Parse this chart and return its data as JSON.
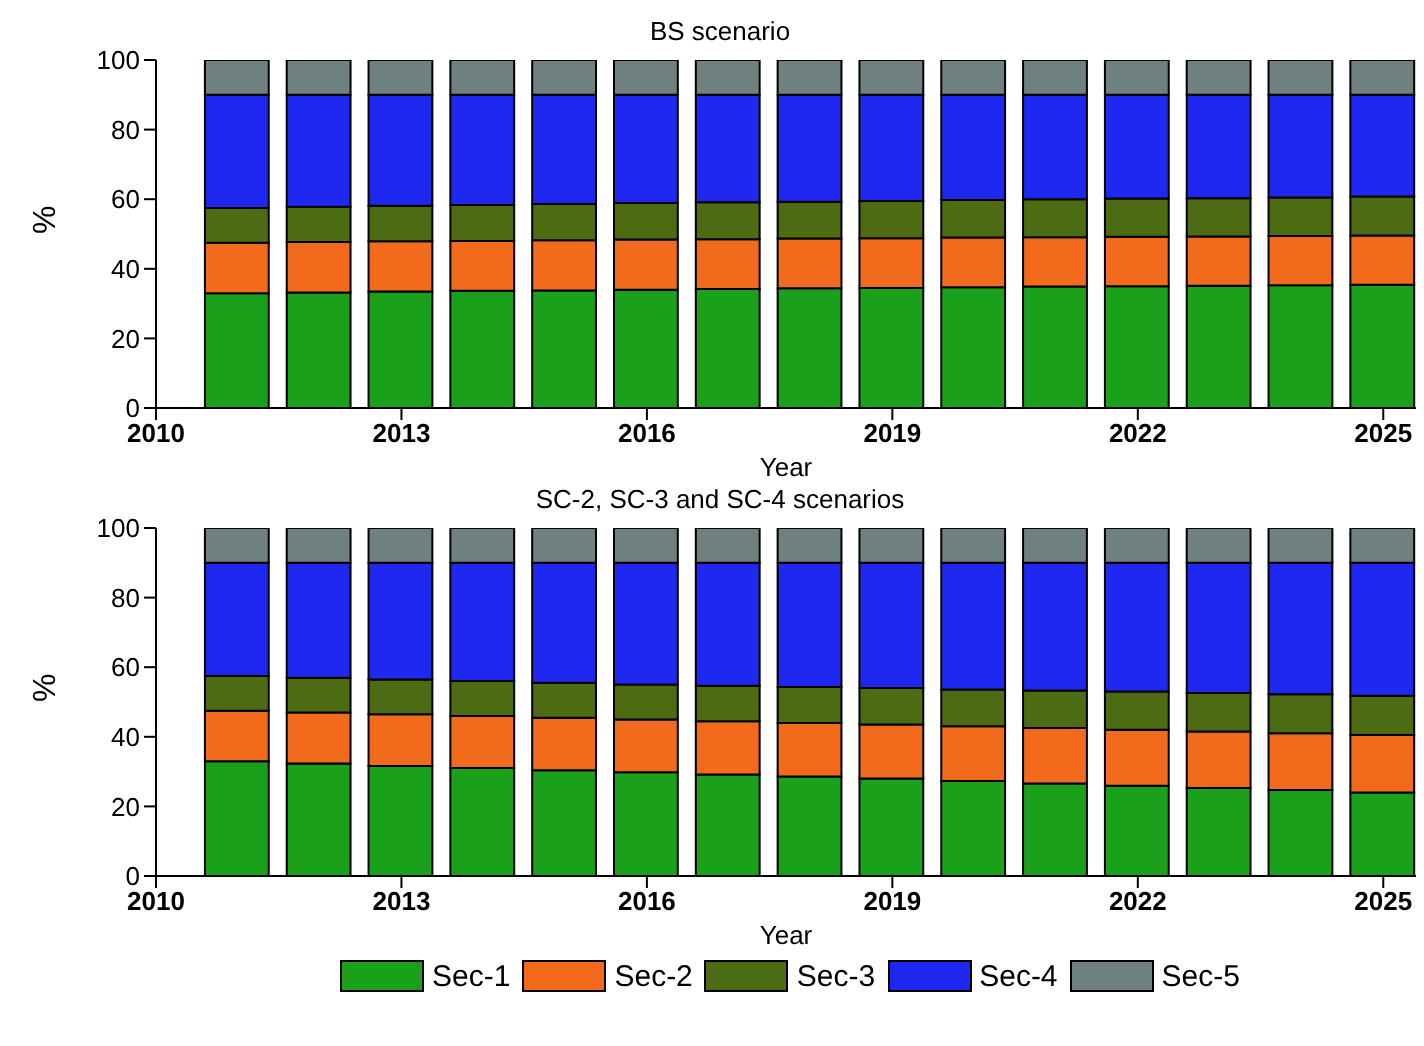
{
  "chart_data": [
    {
      "type": "bar",
      "title": "BS scenario",
      "xlabel": "Year",
      "ylabel": "%",
      "stacked": true,
      "x": [
        2011,
        2012,
        2013,
        2014,
        2015,
        2016,
        2017,
        2018,
        2019,
        2020,
        2021,
        2022,
        2023,
        2024,
        2025
      ],
      "xlim": [
        2010,
        2025.4
      ],
      "xticks": [
        2010,
        2013,
        2016,
        2019,
        2022,
        2025
      ],
      "ylim": [
        0,
        100
      ],
      "yticks": [
        0,
        20,
        40,
        60,
        80,
        100
      ],
      "grid": false,
      "series": [
        {
          "color": "#1aa01a",
          "values": [
            33.0,
            33.2,
            33.5,
            33.7,
            33.8,
            34.0,
            34.2,
            34.4,
            34.5,
            34.7,
            34.9,
            35.0,
            35.1,
            35.3,
            35.4
          ]
        },
        {
          "color": "#f26a1b",
          "values": [
            14.5,
            14.5,
            14.4,
            14.3,
            14.4,
            14.4,
            14.3,
            14.3,
            14.3,
            14.3,
            14.2,
            14.2,
            14.2,
            14.1,
            14.2
          ]
        },
        {
          "color": "#4d6b12",
          "values": [
            10.0,
            10.1,
            10.2,
            10.3,
            10.4,
            10.5,
            10.6,
            10.6,
            10.7,
            10.8,
            10.9,
            11.0,
            11.0,
            11.1,
            11.2
          ]
        },
        {
          "color": "#1e28f0",
          "values": [
            32.5,
            32.2,
            31.9,
            31.7,
            31.4,
            31.1,
            30.9,
            30.7,
            30.5,
            30.2,
            30.0,
            29.8,
            29.7,
            29.5,
            29.2
          ]
        },
        {
          "color": "#6f8080",
          "values": [
            10,
            10,
            10,
            10,
            10,
            10,
            10,
            10,
            10,
            10,
            10,
            10,
            10,
            10,
            10
          ]
        }
      ]
    },
    {
      "type": "bar",
      "title": "SC-2, SC-3 and SC-4 scenarios",
      "xlabel": "Year",
      "ylabel": "%",
      "stacked": true,
      "legend": "bottom",
      "x": [
        2011,
        2012,
        2013,
        2014,
        2015,
        2016,
        2017,
        2018,
        2019,
        2020,
        2021,
        2022,
        2023,
        2024,
        2025
      ],
      "xlim": [
        2010,
        2025.4
      ],
      "xticks": [
        2010,
        2013,
        2016,
        2019,
        2022,
        2025
      ],
      "ylim": [
        0,
        100
      ],
      "yticks": [
        0,
        20,
        40,
        60,
        80,
        100
      ],
      "grid": false,
      "series": [
        {
          "name": "Sec-1",
          "color": "#1aa01a",
          "values": [
            33.0,
            32.3,
            31.6,
            31.0,
            30.4,
            29.8,
            29.2,
            28.6,
            28.0,
            27.3,
            26.6,
            25.9,
            25.3,
            24.7,
            24.0
          ]
        },
        {
          "name": "Sec-2",
          "color": "#f26a1b",
          "values": [
            14.5,
            14.7,
            14.9,
            15.0,
            15.1,
            15.2,
            15.3,
            15.4,
            15.5,
            15.7,
            15.9,
            16.1,
            16.2,
            16.3,
            16.5
          ]
        },
        {
          "name": "Sec-3",
          "color": "#4d6b12",
          "values": [
            10.0,
            10.0,
            10.0,
            10.0,
            10.0,
            10.0,
            10.2,
            10.3,
            10.5,
            10.6,
            10.8,
            11.0,
            11.1,
            11.2,
            11.3
          ]
        },
        {
          "name": "Sec-4",
          "color": "#1e28f0",
          "values": [
            32.5,
            33.0,
            33.5,
            34.0,
            34.5,
            35.0,
            35.3,
            35.7,
            36.0,
            36.4,
            36.7,
            37.0,
            37.4,
            37.8,
            38.2
          ]
        },
        {
          "name": "Sec-5",
          "color": "#6f8080",
          "values": [
            10,
            10,
            10,
            10,
            10,
            10,
            10,
            10,
            10,
            10,
            10,
            10,
            10,
            10,
            10
          ]
        }
      ]
    }
  ]
}
